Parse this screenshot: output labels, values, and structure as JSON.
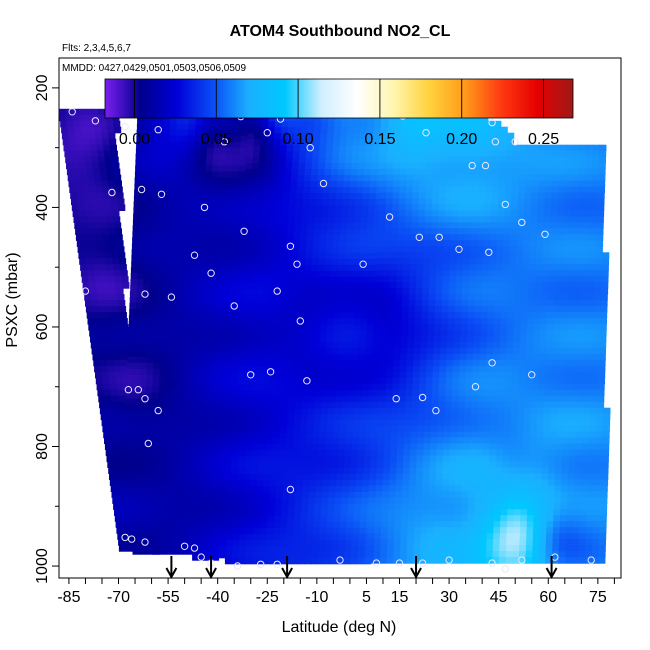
{
  "chart_data": {
    "type": "heatmap",
    "title": "ATOM4 Southbound NO2_CL",
    "subtitle_flights": "Flts: 2,3,4,5,6,7",
    "subtitle_dates": "MMDD: 0427,0429,0501,0503,0506,0509",
    "xlabel": "Latitude (deg N)",
    "ylabel": "PSXC (mbar)",
    "xlim": [
      -88,
      82
    ],
    "ylim": [
      1020,
      150
    ],
    "x_ticks": [
      "-85",
      "-70",
      "-55",
      "-40",
      "-25",
      "-10",
      "5",
      "15",
      "30",
      "45",
      "60",
      "75"
    ],
    "y_ticks": [
      "200",
      "400",
      "600",
      "800",
      "1000"
    ],
    "colorbar": {
      "range": [
        -0.018,
        0.268
      ],
      "ticks": [
        "0.00",
        "0.05",
        "0.10",
        "0.15",
        "0.20",
        "0.25"
      ],
      "colors": [
        "#7a1ff0",
        "#00008c",
        "#0000d8",
        "#0a4cf5",
        "#1ab0ff",
        "#00c8ff",
        "#cfeeff",
        "#ffffff",
        "#fff6b0",
        "#ffd23c",
        "#ff9a1a",
        "#ff3a12",
        "#e50000",
        "#a01818"
      ]
    },
    "surface_pressure": [
      [
        -70,
        968
      ],
      [
        -60,
        972
      ],
      [
        -40,
        985
      ],
      [
        -20,
        992
      ],
      [
        0,
        990
      ],
      [
        20,
        992
      ],
      [
        40,
        993
      ],
      [
        55,
        990
      ],
      [
        70,
        988
      ],
      [
        75,
        990
      ]
    ],
    "flight_top": [
      [
        -85,
        238
      ],
      [
        -80,
        236
      ],
      [
        -70,
        222
      ],
      [
        -55,
        205
      ],
      [
        -45,
        200
      ],
      [
        -30,
        197
      ],
      [
        -15,
        196
      ],
      [
        0,
        205
      ],
      [
        10,
        208
      ],
      [
        25,
        217
      ],
      [
        35,
        240
      ],
      [
        45,
        265
      ],
      [
        50,
        285
      ],
      [
        60,
        295
      ],
      [
        70,
        300
      ]
    ],
    "markers_latitude": [
      -54,
      -42,
      -19,
      20,
      61
    ],
    "flight_segments": [
      {
        "name": "seg1",
        "lat_north": [
          -89,
          -72
        ],
        "lat_south": [
          -69,
          -64
        ],
        "p_top": 235,
        "p_bot": 1000
      },
      {
        "name": "seg2",
        "lat_north": [
          -64,
          -50
        ],
        "lat_south": [
          -70,
          -60
        ],
        "p_top": 210,
        "p_bot": 990
      },
      {
        "name": "seg3",
        "lat_north": [
          -50,
          -30
        ],
        "lat_south": [
          -60,
          -40
        ],
        "p_top": 200,
        "p_bot": 990
      },
      {
        "name": "seg4",
        "lat_north": [
          -30,
          10
        ],
        "lat_south": [
          -40,
          5
        ],
        "p_top": 196,
        "p_bot": 990
      },
      {
        "name": "seg5",
        "lat_north": [
          10,
          50
        ],
        "lat_south": [
          5,
          45
        ],
        "p_top": 215,
        "p_bot": 990
      },
      {
        "name": "seg6",
        "lat_north": [
          50,
          76
        ],
        "lat_south": [
          45,
          77
        ],
        "p_top": 295,
        "p_bot": 990
      }
    ],
    "field_samples": [
      {
        "lat": -80,
        "p": 300,
        "v": -0.01
      },
      {
        "lat": -75,
        "p": 500,
        "v": -0.005
      },
      {
        "lat": -65,
        "p": 700,
        "v": 0.0
      },
      {
        "lat": -60,
        "p": 900,
        "v": 0.01
      },
      {
        "lat": -50,
        "p": 250,
        "v": 0.04
      },
      {
        "lat": -40,
        "p": 300,
        "v": -0.005
      },
      {
        "lat": -30,
        "p": 280,
        "v": -0.01
      },
      {
        "lat": -20,
        "p": 220,
        "v": 0.06
      },
      {
        "lat": 0,
        "p": 230,
        "v": 0.07
      },
      {
        "lat": 20,
        "p": 240,
        "v": 0.09
      },
      {
        "lat": 35,
        "p": 260,
        "v": 0.08
      },
      {
        "lat": 30,
        "p": 950,
        "v": 0.07
      },
      {
        "lat": 50,
        "p": 950,
        "v": 0.12
      },
      {
        "lat": 48,
        "p": 800,
        "v": 0.06
      },
      {
        "lat": 65,
        "p": 950,
        "v": 0.05
      },
      {
        "lat": 10,
        "p": 600,
        "v": 0.02
      },
      {
        "lat": -15,
        "p": 600,
        "v": 0.02
      }
    ],
    "observation_points": [
      [
        -84,
        240
      ],
      [
        -70,
        220
      ],
      [
        -67,
        228
      ],
      [
        -64,
        240
      ],
      [
        -59,
        208
      ],
      [
        -46,
        200
      ],
      [
        -33,
        248
      ],
      [
        -21,
        252
      ],
      [
        -5,
        200
      ],
      [
        6,
        225
      ],
      [
        16,
        247
      ],
      [
        33,
        218
      ],
      [
        43,
        258
      ],
      [
        -77,
        255
      ],
      [
        -68,
        265
      ],
      [
        -58,
        270
      ],
      [
        -38,
        290
      ],
      [
        -25,
        275
      ],
      [
        -12,
        300
      ],
      [
        23,
        275
      ],
      [
        37,
        330
      ],
      [
        41,
        330
      ],
      [
        44,
        290
      ],
      [
        50,
        290
      ],
      [
        -72,
        375
      ],
      [
        -63,
        370
      ],
      [
        -57,
        378
      ],
      [
        -44,
        400
      ],
      [
        -32,
        440
      ],
      [
        -18,
        465
      ],
      [
        -8,
        360
      ],
      [
        12,
        416
      ],
      [
        21,
        450
      ],
      [
        27,
        450
      ],
      [
        33,
        470
      ],
      [
        47,
        395
      ],
      [
        52,
        425
      ],
      [
        59,
        445
      ],
      [
        -80,
        540
      ],
      [
        -62,
        545
      ],
      [
        -54,
        550
      ],
      [
        -47,
        480
      ],
      [
        -42,
        510
      ],
      [
        -35,
        565
      ],
      [
        -22,
        540
      ],
      [
        -16,
        495
      ],
      [
        4,
        495
      ],
      [
        42,
        475
      ],
      [
        -24,
        675
      ],
      [
        -30,
        680
      ],
      [
        -15,
        590
      ],
      [
        -13,
        690
      ],
      [
        -67,
        705
      ],
      [
        -64,
        705
      ],
      [
        -62,
        720
      ],
      [
        -58,
        740
      ],
      [
        14,
        720
      ],
      [
        22,
        718
      ],
      [
        26,
        740
      ],
      [
        38,
        700
      ],
      [
        43,
        660
      ],
      [
        55,
        680
      ],
      [
        -61,
        795
      ],
      [
        -18,
        872
      ],
      [
        -68,
        952
      ],
      [
        -66,
        955
      ],
      [
        -62,
        960
      ],
      [
        -50,
        967
      ],
      [
        -47,
        970
      ],
      [
        -42,
        995
      ],
      [
        -34,
        1000
      ],
      [
        -27,
        997
      ],
      [
        -22,
        997
      ],
      [
        -3,
        990
      ],
      [
        8,
        995
      ],
      [
        15,
        995
      ],
      [
        22,
        995
      ],
      [
        30,
        990
      ],
      [
        43,
        995
      ],
      [
        47,
        1005
      ],
      [
        52,
        990
      ],
      [
        62,
        985
      ],
      [
        73,
        990
      ],
      [
        -45,
        985
      ]
    ]
  }
}
